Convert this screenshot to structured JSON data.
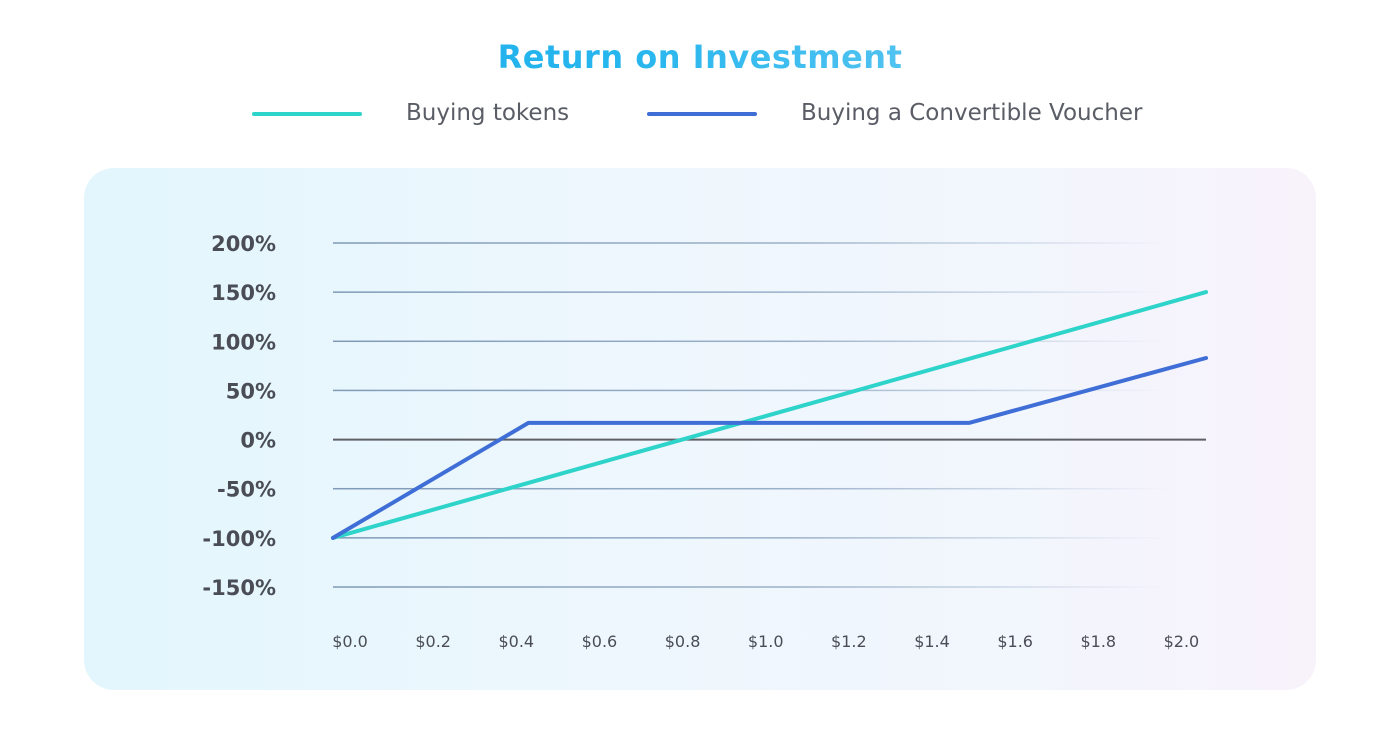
{
  "title": "Return on Investment",
  "legend": [
    {
      "label": "Buying tokens",
      "color": "#2ed3c9"
    },
    {
      "label": "Buying a Convertible Voucher",
      "color": "#3f6fd6"
    }
  ],
  "chart_data": {
    "type": "line",
    "title": "Return on Investment",
    "xlabel": "",
    "ylabel": "",
    "x_ticks": [
      "$0.0",
      "$0.2",
      "$0.4",
      "$0.6",
      "$0.8",
      "$1.0",
      "$1.2",
      "$1.4",
      "$1.6",
      "$1.8",
      "$2.0"
    ],
    "y_ticks": [
      "200%",
      "150%",
      "100%",
      "50%",
      "0%",
      "-50%",
      "-100%",
      "-150%"
    ],
    "xlim": [
      0,
      2.1
    ],
    "ylim": [
      -150,
      200
    ],
    "grid": true,
    "legend_position": "top",
    "zero_line_color": "#5e6066",
    "grid_color": "#7f9ab8",
    "series": [
      {
        "name": "Buying tokens",
        "color": "#2ed3c9",
        "points": [
          [
            0.0,
            -100
          ],
          [
            2.1,
            150
          ]
        ]
      },
      {
        "name": "Buying a Convertible Voucher",
        "color": "#3f6fd6",
        "points": [
          [
            0.0,
            -100
          ],
          [
            0.47,
            17
          ],
          [
            1.53,
            17
          ],
          [
            2.1,
            83
          ]
        ]
      }
    ]
  }
}
